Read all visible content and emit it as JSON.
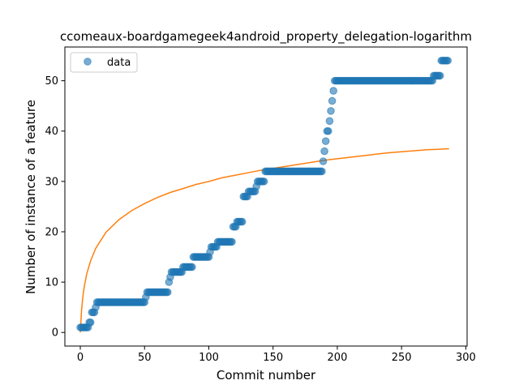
{
  "chart_data": {
    "type": "scatter",
    "title": "ccomeaux-boardgamegeek4android_property_delegation-logarithm",
    "xlabel": "Commit number",
    "ylabel": "Number of instance of a feature",
    "xlim": [
      -12,
      301
    ],
    "ylim": [
      -2.7,
      56.7
    ],
    "xticks": [
      0,
      50,
      100,
      150,
      200,
      250,
      300
    ],
    "yticks": [
      0,
      10,
      20,
      30,
      40,
      50
    ],
    "grid": false,
    "legend": {
      "position": "top-left",
      "entries": [
        "data"
      ]
    },
    "colors": {
      "data": "#1f77b4",
      "fit": "#ff7f0e"
    },
    "series": [
      {
        "name": "data",
        "kind": "scatter",
        "points": [
          [
            0,
            1
          ],
          [
            1,
            1
          ],
          [
            2,
            1
          ],
          [
            3,
            1
          ],
          [
            4,
            1
          ],
          [
            5,
            1
          ],
          [
            6,
            1
          ],
          [
            7,
            2
          ],
          [
            8,
            2
          ],
          [
            9,
            4
          ],
          [
            10,
            4
          ],
          [
            11,
            4
          ],
          [
            12,
            5
          ],
          [
            13,
            6
          ],
          [
            14,
            6
          ],
          [
            15,
            6
          ],
          [
            16,
            6
          ],
          [
            17,
            6
          ],
          [
            18,
            6
          ],
          [
            19,
            6
          ],
          [
            20,
            6
          ],
          [
            21,
            6
          ],
          [
            22,
            6
          ],
          [
            23,
            6
          ],
          [
            24,
            6
          ],
          [
            25,
            6
          ],
          [
            26,
            6
          ],
          [
            27,
            6
          ],
          [
            28,
            6
          ],
          [
            29,
            6
          ],
          [
            30,
            6
          ],
          [
            31,
            6
          ],
          [
            32,
            6
          ],
          [
            33,
            6
          ],
          [
            34,
            6
          ],
          [
            35,
            6
          ],
          [
            36,
            6
          ],
          [
            37,
            6
          ],
          [
            38,
            6
          ],
          [
            39,
            6
          ],
          [
            40,
            6
          ],
          [
            41,
            6
          ],
          [
            42,
            6
          ],
          [
            43,
            6
          ],
          [
            44,
            6
          ],
          [
            45,
            6
          ],
          [
            46,
            6
          ],
          [
            47,
            6
          ],
          [
            48,
            6
          ],
          [
            49,
            6
          ],
          [
            50,
            6
          ],
          [
            51,
            7
          ],
          [
            52,
            8
          ],
          [
            53,
            8
          ],
          [
            54,
            8
          ],
          [
            55,
            8
          ],
          [
            56,
            8
          ],
          [
            57,
            8
          ],
          [
            58,
            8
          ],
          [
            59,
            8
          ],
          [
            60,
            8
          ],
          [
            61,
            8
          ],
          [
            62,
            8
          ],
          [
            63,
            8
          ],
          [
            64,
            8
          ],
          [
            65,
            8
          ],
          [
            66,
            8
          ],
          [
            67,
            8
          ],
          [
            68,
            8
          ],
          [
            69,
            10
          ],
          [
            70,
            11
          ],
          [
            71,
            12
          ],
          [
            72,
            12
          ],
          [
            73,
            12
          ],
          [
            74,
            12
          ],
          [
            75,
            12
          ],
          [
            76,
            12
          ],
          [
            77,
            12
          ],
          [
            78,
            12
          ],
          [
            79,
            12
          ],
          [
            80,
            13
          ],
          [
            81,
            13
          ],
          [
            82,
            13
          ],
          [
            83,
            13
          ],
          [
            84,
            13
          ],
          [
            85,
            13
          ],
          [
            86,
            13
          ],
          [
            87,
            13
          ],
          [
            88,
            15
          ],
          [
            89,
            15
          ],
          [
            90,
            15
          ],
          [
            91,
            15
          ],
          [
            92,
            15
          ],
          [
            93,
            15
          ],
          [
            94,
            15
          ],
          [
            95,
            15
          ],
          [
            96,
            15
          ],
          [
            97,
            15
          ],
          [
            98,
            15
          ],
          [
            99,
            15
          ],
          [
            100,
            15
          ],
          [
            101,
            16
          ],
          [
            102,
            17
          ],
          [
            103,
            17
          ],
          [
            104,
            17
          ],
          [
            105,
            17
          ],
          [
            106,
            17
          ],
          [
            107,
            18
          ],
          [
            108,
            18
          ],
          [
            109,
            18
          ],
          [
            110,
            18
          ],
          [
            111,
            18
          ],
          [
            112,
            18
          ],
          [
            113,
            18
          ],
          [
            114,
            18
          ],
          [
            115,
            18
          ],
          [
            116,
            18
          ],
          [
            117,
            18
          ],
          [
            118,
            18
          ],
          [
            119,
            21
          ],
          [
            120,
            21
          ],
          [
            121,
            21
          ],
          [
            122,
            22
          ],
          [
            123,
            22
          ],
          [
            124,
            22
          ],
          [
            125,
            22
          ],
          [
            126,
            22
          ],
          [
            127,
            27
          ],
          [
            128,
            27
          ],
          [
            129,
            27
          ],
          [
            130,
            27
          ],
          [
            131,
            28
          ],
          [
            132,
            28
          ],
          [
            133,
            28
          ],
          [
            134,
            28
          ],
          [
            135,
            28
          ],
          [
            136,
            28
          ],
          [
            137,
            29
          ],
          [
            138,
            30
          ],
          [
            139,
            30
          ],
          [
            140,
            30
          ],
          [
            141,
            30
          ],
          [
            142,
            30
          ],
          [
            143,
            30
          ],
          [
            144,
            32
          ],
          [
            145,
            32
          ],
          [
            146,
            32
          ],
          [
            147,
            32
          ],
          [
            148,
            32
          ],
          [
            149,
            32
          ],
          [
            150,
            32
          ],
          [
            151,
            32
          ],
          [
            152,
            32
          ],
          [
            153,
            32
          ],
          [
            154,
            32
          ],
          [
            155,
            32
          ],
          [
            156,
            32
          ],
          [
            157,
            32
          ],
          [
            158,
            32
          ],
          [
            159,
            32
          ],
          [
            160,
            32
          ],
          [
            161,
            32
          ],
          [
            162,
            32
          ],
          [
            163,
            32
          ],
          [
            164,
            32
          ],
          [
            165,
            32
          ],
          [
            166,
            32
          ],
          [
            167,
            32
          ],
          [
            168,
            32
          ],
          [
            169,
            32
          ],
          [
            170,
            32
          ],
          [
            171,
            32
          ],
          [
            172,
            32
          ],
          [
            173,
            32
          ],
          [
            174,
            32
          ],
          [
            175,
            32
          ],
          [
            176,
            32
          ],
          [
            177,
            32
          ],
          [
            178,
            32
          ],
          [
            179,
            32
          ],
          [
            180,
            32
          ],
          [
            181,
            32
          ],
          [
            182,
            32
          ],
          [
            183,
            32
          ],
          [
            184,
            32
          ],
          [
            185,
            32
          ],
          [
            186,
            32
          ],
          [
            187,
            32
          ],
          [
            188,
            32
          ],
          [
            189,
            34
          ],
          [
            190,
            36
          ],
          [
            191,
            38
          ],
          [
            192,
            40
          ],
          [
            193,
            40
          ],
          [
            194,
            42
          ],
          [
            195,
            44
          ],
          [
            196,
            46
          ],
          [
            197,
            48
          ],
          [
            198,
            50
          ],
          [
            199,
            50
          ],
          [
            200,
            50
          ],
          [
            201,
            50
          ],
          [
            202,
            50
          ],
          [
            203,
            50
          ],
          [
            204,
            50
          ],
          [
            205,
            50
          ],
          [
            206,
            50
          ],
          [
            207,
            50
          ],
          [
            208,
            50
          ],
          [
            209,
            50
          ],
          [
            210,
            50
          ],
          [
            211,
            50
          ],
          [
            212,
            50
          ],
          [
            213,
            50
          ],
          [
            214,
            50
          ],
          [
            215,
            50
          ],
          [
            216,
            50
          ],
          [
            217,
            50
          ],
          [
            218,
            50
          ],
          [
            219,
            50
          ],
          [
            220,
            50
          ],
          [
            221,
            50
          ],
          [
            222,
            50
          ],
          [
            223,
            50
          ],
          [
            224,
            50
          ],
          [
            225,
            50
          ],
          [
            226,
            50
          ],
          [
            227,
            50
          ],
          [
            228,
            50
          ],
          [
            229,
            50
          ],
          [
            230,
            50
          ],
          [
            231,
            50
          ],
          [
            232,
            50
          ],
          [
            233,
            50
          ],
          [
            234,
            50
          ],
          [
            235,
            50
          ],
          [
            236,
            50
          ],
          [
            237,
            50
          ],
          [
            238,
            50
          ],
          [
            239,
            50
          ],
          [
            240,
            50
          ],
          [
            241,
            50
          ],
          [
            242,
            50
          ],
          [
            243,
            50
          ],
          [
            244,
            50
          ],
          [
            245,
            50
          ],
          [
            246,
            50
          ],
          [
            247,
            50
          ],
          [
            248,
            50
          ],
          [
            249,
            50
          ],
          [
            250,
            50
          ],
          [
            251,
            50
          ],
          [
            252,
            50
          ],
          [
            253,
            50
          ],
          [
            254,
            50
          ],
          [
            255,
            50
          ],
          [
            256,
            50
          ],
          [
            257,
            50
          ],
          [
            258,
            50
          ],
          [
            259,
            50
          ],
          [
            260,
            50
          ],
          [
            261,
            50
          ],
          [
            262,
            50
          ],
          [
            263,
            50
          ],
          [
            264,
            50
          ],
          [
            265,
            50
          ],
          [
            266,
            50
          ],
          [
            267,
            50
          ],
          [
            268,
            50
          ],
          [
            269,
            50
          ],
          [
            270,
            50
          ],
          [
            271,
            50
          ],
          [
            272,
            50
          ],
          [
            273,
            50
          ],
          [
            274,
            50
          ],
          [
            275,
            51
          ],
          [
            276,
            51
          ],
          [
            277,
            51
          ],
          [
            278,
            51
          ],
          [
            279,
            51
          ],
          [
            280,
            51
          ],
          [
            281,
            54
          ],
          [
            282,
            54
          ],
          [
            283,
            54
          ],
          [
            284,
            54
          ],
          [
            285,
            54
          ],
          [
            286,
            54
          ]
        ]
      },
      {
        "kind": "line",
        "points": [
          [
            0,
            0.0
          ],
          [
            1,
            4.5
          ],
          [
            2,
            7.1
          ],
          [
            3,
            9.0
          ],
          [
            5,
            11.6
          ],
          [
            8,
            14.2
          ],
          [
            12,
            16.7
          ],
          [
            20,
            19.9
          ],
          [
            30,
            22.4
          ],
          [
            40,
            24.2
          ],
          [
            50,
            25.6
          ],
          [
            60,
            26.8
          ],
          [
            70,
            27.8
          ],
          [
            80,
            28.6
          ],
          [
            90,
            29.4
          ],
          [
            100,
            30.0
          ],
          [
            110,
            30.7
          ],
          [
            120,
            31.2
          ],
          [
            130,
            31.7
          ],
          [
            140,
            32.2
          ],
          [
            150,
            32.6
          ],
          [
            160,
            33.0
          ],
          [
            170,
            33.4
          ],
          [
            180,
            33.8
          ],
          [
            190,
            34.2
          ],
          [
            200,
            34.5
          ],
          [
            210,
            34.8
          ],
          [
            220,
            35.1
          ],
          [
            230,
            35.4
          ],
          [
            240,
            35.7
          ],
          [
            250,
            35.9
          ],
          [
            260,
            36.1
          ],
          [
            270,
            36.3
          ],
          [
            280,
            36.4
          ],
          [
            287,
            36.5
          ]
        ]
      }
    ]
  }
}
